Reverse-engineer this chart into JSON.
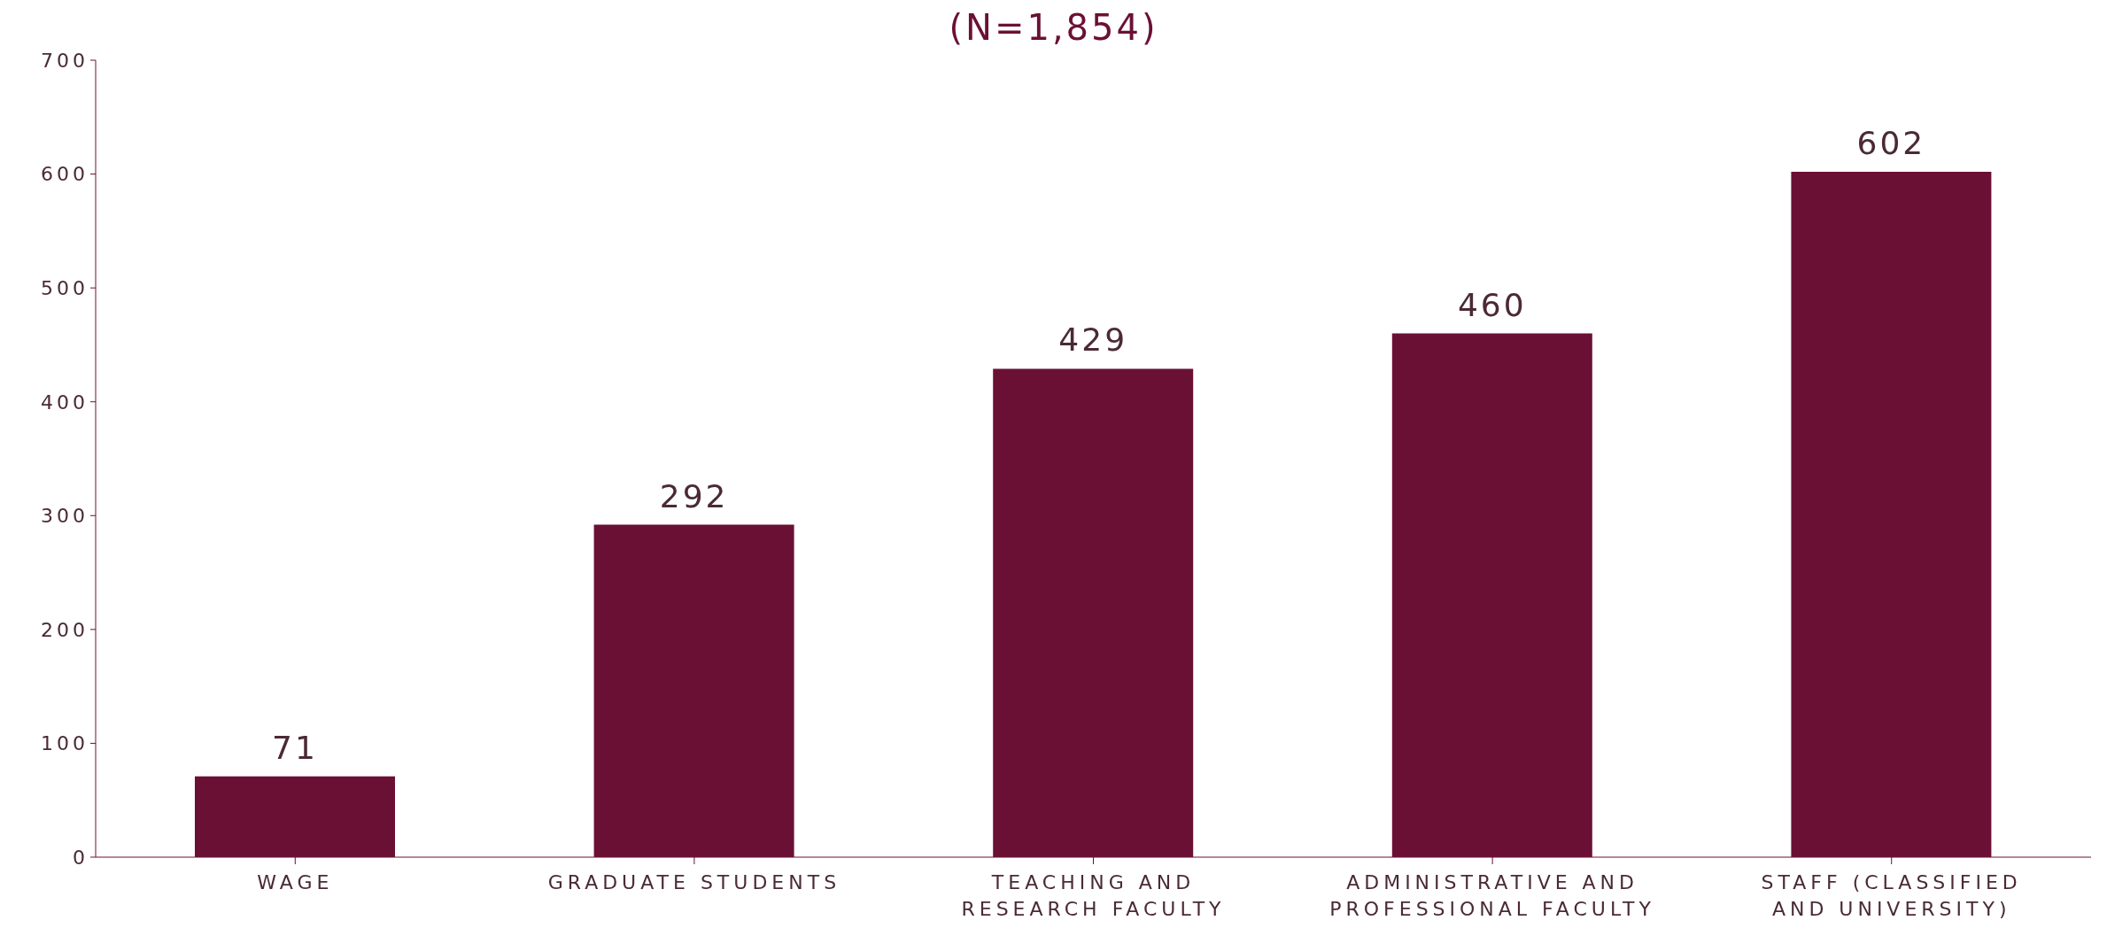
{
  "chart_data": {
    "type": "bar",
    "title": "(N=1,854)",
    "categories": [
      "WAGE",
      "GRADUATE STUDENTS",
      "TEACHING AND RESEARCH FACULTY",
      "ADMINISTRATIVE AND PROFESSIONAL FACULTY",
      "STAFF (CLASSIFIED AND UNIVERSITY)"
    ],
    "values": [
      71,
      292,
      429,
      460,
      602
    ],
    "color": "#6b1035",
    "ylim": [
      0,
      700
    ],
    "yticks": [
      0,
      100,
      200,
      300,
      400,
      500,
      600,
      700
    ],
    "data_labels": true,
    "grid": false
  }
}
